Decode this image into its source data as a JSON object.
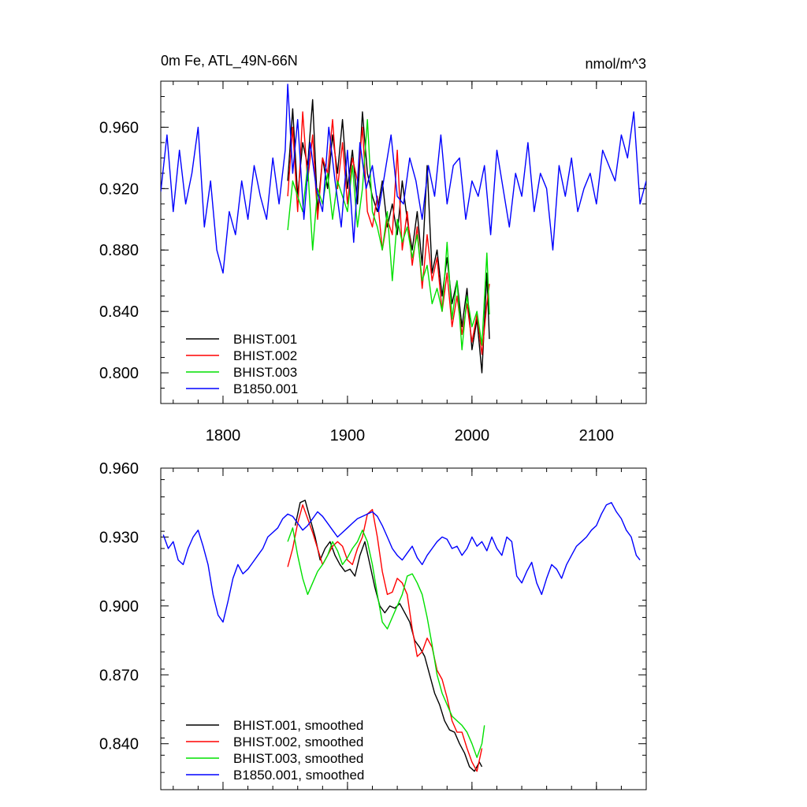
{
  "header": {
    "left_title": "0m Fe, ATL_49N-66N",
    "right_units": "nmol/m^3"
  },
  "colors": {
    "BHIST.001": "#000000",
    "BHIST.002": "#ff0000",
    "BHIST.003": "#00e000",
    "B1850.001": "#0000ff"
  },
  "chart_data": [
    {
      "type": "line",
      "panel": "top",
      "title": "0m Fe, ATL_49N-66N",
      "units": "nmol/m^3",
      "xlim": [
        1750,
        2140
      ],
      "ylim": [
        0.78,
        0.99
      ],
      "x_ticks": [
        1800,
        1900,
        2000,
        2100
      ],
      "x_tick_labels": [
        "1800",
        "1900",
        "2000",
        "2100"
      ],
      "y_ticks": [
        0.8,
        0.84,
        0.88,
        0.92,
        0.96
      ],
      "y_tick_labels": [
        "0.800",
        "0.840",
        "0.880",
        "0.920",
        "0.960"
      ],
      "legend_position": "bottom-left",
      "series": [
        {
          "name": "BHIST.001",
          "color": "#000000",
          "x": [
            1852,
            1856,
            1860,
            1864,
            1868,
            1872,
            1876,
            1880,
            1884,
            1888,
            1892,
            1896,
            1900,
            1904,
            1908,
            1912,
            1916,
            1920,
            1924,
            1928,
            1932,
            1936,
            1940,
            1944,
            1948,
            1952,
            1956,
            1960,
            1964,
            1968,
            1972,
            1976,
            1980,
            1984,
            1988,
            1992,
            1996,
            2000,
            2004,
            2008,
            2012,
            2014
          ],
          "y": [
            0.925,
            0.972,
            0.915,
            0.95,
            0.935,
            0.978,
            0.905,
            0.94,
            0.92,
            0.955,
            0.93,
            0.965,
            0.92,
            0.945,
            0.91,
            0.97,
            0.93,
            0.915,
            0.905,
            0.925,
            0.895,
            0.91,
            0.89,
            0.925,
            0.9,
            0.88,
            0.905,
            0.87,
            0.935,
            0.865,
            0.88,
            0.85,
            0.875,
            0.845,
            0.86,
            0.83,
            0.855,
            0.815,
            0.835,
            0.8,
            0.865,
            0.822
          ]
        },
        {
          "name": "BHIST.002",
          "color": "#ff0000",
          "x": [
            1852,
            1856,
            1860,
            1864,
            1868,
            1872,
            1876,
            1880,
            1884,
            1888,
            1892,
            1896,
            1900,
            1904,
            1908,
            1912,
            1916,
            1920,
            1924,
            1928,
            1932,
            1936,
            1940,
            1944,
            1948,
            1952,
            1956,
            1960,
            1964,
            1968,
            1972,
            1976,
            1980,
            1984,
            1988,
            1992,
            1996,
            2000,
            2004,
            2008,
            2012,
            2014
          ],
          "y": [
            0.915,
            0.96,
            0.905,
            0.97,
            0.925,
            0.955,
            0.9,
            0.94,
            0.93,
            0.965,
            0.92,
            0.95,
            0.91,
            0.94,
            0.925,
            0.96,
            0.905,
            0.895,
            0.915,
            0.88,
            0.9,
            0.89,
            0.945,
            0.88,
            0.905,
            0.87,
            0.895,
            0.855,
            0.89,
            0.86,
            0.875,
            0.84,
            0.865,
            0.83,
            0.85,
            0.825,
            0.845,
            0.82,
            0.838,
            0.812,
            0.845,
            0.858
          ]
        },
        {
          "name": "BHIST.003",
          "color": "#00e000",
          "x": [
            1852,
            1856,
            1860,
            1864,
            1868,
            1872,
            1876,
            1880,
            1884,
            1888,
            1892,
            1896,
            1900,
            1904,
            1908,
            1912,
            1916,
            1920,
            1924,
            1928,
            1932,
            1936,
            1940,
            1944,
            1948,
            1952,
            1956,
            1960,
            1964,
            1968,
            1972,
            1976,
            1980,
            1984,
            1988,
            1992,
            1996,
            2000,
            2004,
            2008,
            2012,
            2014
          ],
          "y": [
            0.893,
            0.925,
            0.915,
            0.905,
            0.935,
            0.88,
            0.92,
            0.91,
            0.93,
            0.9,
            0.925,
            0.915,
            0.905,
            0.935,
            0.895,
            0.92,
            0.965,
            0.905,
            0.895,
            0.88,
            0.905,
            0.86,
            0.9,
            0.885,
            0.895,
            0.875,
            0.89,
            0.86,
            0.87,
            0.845,
            0.855,
            0.84,
            0.885,
            0.835,
            0.86,
            0.815,
            0.85,
            0.83,
            0.84,
            0.818,
            0.878,
            0.838
          ]
        },
        {
          "name": "B1850.001",
          "color": "#0000ff",
          "x": [
            1750,
            1755,
            1760,
            1765,
            1770,
            1775,
            1780,
            1785,
            1790,
            1795,
            1800,
            1805,
            1810,
            1815,
            1820,
            1825,
            1830,
            1835,
            1840,
            1845,
            1850,
            1852,
            1856,
            1860,
            1865,
            1870,
            1875,
            1880,
            1885,
            1890,
            1895,
            1900,
            1905,
            1910,
            1915,
            1920,
            1925,
            1930,
            1935,
            1940,
            1945,
            1950,
            1955,
            1960,
            1965,
            1970,
            1975,
            1980,
            1985,
            1990,
            1995,
            2000,
            2005,
            2010,
            2015,
            2020,
            2025,
            2030,
            2035,
            2040,
            2045,
            2050,
            2055,
            2060,
            2065,
            2070,
            2075,
            2080,
            2085,
            2090,
            2095,
            2100,
            2105,
            2110,
            2115,
            2120,
            2125,
            2130,
            2135,
            2140
          ],
          "y": [
            0.918,
            0.955,
            0.905,
            0.945,
            0.91,
            0.93,
            0.96,
            0.895,
            0.925,
            0.88,
            0.865,
            0.905,
            0.89,
            0.925,
            0.9,
            0.935,
            0.915,
            0.9,
            0.94,
            0.91,
            0.945,
            0.988,
            0.93,
            0.965,
            0.9,
            0.95,
            0.92,
            0.905,
            0.96,
            0.925,
            0.895,
            0.945,
            0.885,
            0.95,
            0.92,
            0.935,
            0.905,
            0.93,
            0.955,
            0.915,
            0.91,
            0.94,
            0.925,
            0.9,
            0.935,
            0.915,
            0.955,
            0.91,
            0.935,
            0.94,
            0.9,
            0.925,
            0.915,
            0.935,
            0.89,
            0.945,
            0.92,
            0.895,
            0.93,
            0.915,
            0.95,
            0.905,
            0.93,
            0.92,
            0.88,
            0.935,
            0.915,
            0.94,
            0.905,
            0.92,
            0.93,
            0.91,
            0.945,
            0.935,
            0.925,
            0.955,
            0.94,
            0.97,
            0.91,
            0.925
          ]
        }
      ]
    },
    {
      "type": "line",
      "panel": "bottom",
      "xlim": [
        1750,
        2140
      ],
      "ylim": [
        0.82,
        0.96
      ],
      "x_ticks": [
        1800,
        1900,
        2000,
        2100
      ],
      "x_tick_labels": [
        "",
        "",
        "",
        ""
      ],
      "y_ticks": [
        0.84,
        0.87,
        0.9,
        0.93,
        0.96
      ],
      "y_tick_labels": [
        "0.840",
        "0.870",
        "0.900",
        "0.930",
        "0.960"
      ],
      "legend_position": "bottom-left",
      "series": [
        {
          "name": "BHIST.001, smoothed",
          "color": "#000000",
          "x": [
            1858,
            1862,
            1866,
            1870,
            1874,
            1878,
            1882,
            1886,
            1890,
            1894,
            1898,
            1902,
            1906,
            1910,
            1914,
            1918,
            1922,
            1926,
            1930,
            1934,
            1938,
            1942,
            1946,
            1950,
            1954,
            1958,
            1962,
            1966,
            1970,
            1974,
            1978,
            1982,
            1986,
            1990,
            1994,
            1998,
            2002,
            2006,
            2008
          ],
          "y": [
            0.935,
            0.945,
            0.946,
            0.938,
            0.93,
            0.92,
            0.925,
            0.928,
            0.922,
            0.918,
            0.915,
            0.916,
            0.913,
            0.922,
            0.928,
            0.918,
            0.908,
            0.9,
            0.897,
            0.9,
            0.899,
            0.901,
            0.897,
            0.893,
            0.885,
            0.882,
            0.878,
            0.87,
            0.862,
            0.857,
            0.85,
            0.846,
            0.845,
            0.84,
            0.836,
            0.83,
            0.828,
            0.832,
            0.83
          ]
        },
        {
          "name": "BHIST.002, smoothed",
          "color": "#ff0000",
          "x": [
            1852,
            1856,
            1860,
            1864,
            1868,
            1872,
            1876,
            1880,
            1884,
            1888,
            1892,
            1896,
            1900,
            1904,
            1908,
            1912,
            1916,
            1920,
            1924,
            1928,
            1932,
            1936,
            1940,
            1944,
            1948,
            1952,
            1956,
            1960,
            1964,
            1968,
            1972,
            1976,
            1980,
            1984,
            1988,
            1992,
            1996,
            2000,
            2004,
            2008
          ],
          "y": [
            0.917,
            0.925,
            0.936,
            0.944,
            0.938,
            0.932,
            0.925,
            0.918,
            0.922,
            0.926,
            0.928,
            0.926,
            0.92,
            0.918,
            0.925,
            0.93,
            0.94,
            0.942,
            0.93,
            0.915,
            0.905,
            0.906,
            0.912,
            0.91,
            0.905,
            0.89,
            0.878,
            0.88,
            0.886,
            0.882,
            0.872,
            0.868,
            0.86,
            0.85,
            0.845,
            0.845,
            0.838,
            0.832,
            0.828,
            0.838
          ]
        },
        {
          "name": "BHIST.003, smoothed",
          "color": "#00e000",
          "x": [
            1852,
            1856,
            1860,
            1864,
            1868,
            1872,
            1876,
            1880,
            1884,
            1888,
            1892,
            1896,
            1900,
            1904,
            1908,
            1912,
            1916,
            1920,
            1924,
            1928,
            1932,
            1936,
            1940,
            1944,
            1948,
            1952,
            1956,
            1960,
            1964,
            1968,
            1972,
            1976,
            1980,
            1984,
            1988,
            1992,
            1996,
            2000,
            2004,
            2008,
            2010
          ],
          "y": [
            0.928,
            0.934,
            0.922,
            0.912,
            0.905,
            0.91,
            0.915,
            0.918,
            0.922,
            0.928,
            0.924,
            0.918,
            0.921,
            0.925,
            0.928,
            0.933,
            0.928,
            0.918,
            0.905,
            0.893,
            0.89,
            0.895,
            0.9,
            0.905,
            0.913,
            0.914,
            0.91,
            0.905,
            0.895,
            0.883,
            0.87,
            0.862,
            0.857,
            0.852,
            0.85,
            0.848,
            0.845,
            0.84,
            0.834,
            0.84,
            0.848
          ]
        },
        {
          "name": "B1850.001, smoothed",
          "color": "#0000ff",
          "x": [
            1752,
            1756,
            1760,
            1764,
            1768,
            1772,
            1776,
            1780,
            1784,
            1788,
            1792,
            1796,
            1800,
            1804,
            1808,
            1812,
            1816,
            1820,
            1824,
            1828,
            1832,
            1836,
            1840,
            1844,
            1848,
            1852,
            1856,
            1860,
            1864,
            1868,
            1872,
            1876,
            1880,
            1884,
            1888,
            1892,
            1896,
            1900,
            1904,
            1908,
            1912,
            1916,
            1920,
            1924,
            1928,
            1932,
            1936,
            1940,
            1944,
            1948,
            1952,
            1956,
            1960,
            1964,
            1968,
            1972,
            1976,
            1980,
            1984,
            1988,
            1992,
            1996,
            2000,
            2004,
            2008,
            2012,
            2016,
            2020,
            2024,
            2028,
            2032,
            2036,
            2040,
            2044,
            2048,
            2052,
            2056,
            2060,
            2064,
            2068,
            2072,
            2076,
            2080,
            2084,
            2088,
            2092,
            2096,
            2100,
            2104,
            2108,
            2112,
            2116,
            2120,
            2124,
            2128,
            2132,
            2135
          ],
          "y": [
            0.931,
            0.925,
            0.928,
            0.92,
            0.918,
            0.925,
            0.93,
            0.933,
            0.926,
            0.918,
            0.905,
            0.896,
            0.893,
            0.902,
            0.912,
            0.918,
            0.914,
            0.916,
            0.919,
            0.922,
            0.925,
            0.93,
            0.932,
            0.934,
            0.938,
            0.94,
            0.939,
            0.936,
            0.933,
            0.935,
            0.938,
            0.941,
            0.939,
            0.936,
            0.933,
            0.93,
            0.932,
            0.934,
            0.936,
            0.938,
            0.939,
            0.94,
            0.941,
            0.939,
            0.935,
            0.93,
            0.925,
            0.922,
            0.92,
            0.923,
            0.926,
            0.921,
            0.918,
            0.922,
            0.925,
            0.928,
            0.93,
            0.929,
            0.925,
            0.926,
            0.922,
            0.925,
            0.93,
            0.926,
            0.928,
            0.924,
            0.93,
            0.925,
            0.922,
            0.93,
            0.928,
            0.913,
            0.91,
            0.915,
            0.919,
            0.91,
            0.905,
            0.912,
            0.918,
            0.916,
            0.912,
            0.918,
            0.922,
            0.926,
            0.928,
            0.93,
            0.933,
            0.935,
            0.94,
            0.944,
            0.945,
            0.941,
            0.938,
            0.933,
            0.93,
            0.922,
            0.92
          ]
        }
      ]
    }
  ]
}
